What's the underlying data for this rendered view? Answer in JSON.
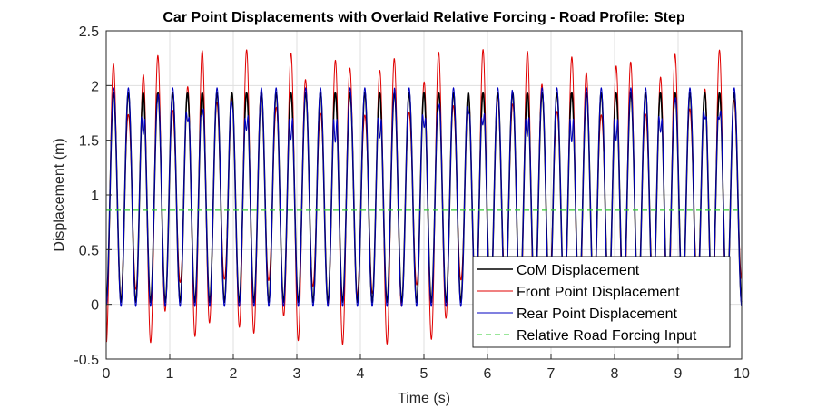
{
  "chart_data": {
    "type": "line",
    "title": "Car Point Displacements with Overlaid Relative Forcing - Road Profile: Step",
    "xlabel": "Time (s)",
    "ylabel": "Displacement (m)",
    "xlim": [
      0,
      10
    ],
    "ylim": [
      -0.5,
      2.5
    ],
    "xticks": [
      "0",
      "1",
      "2",
      "3",
      "4",
      "5",
      "6",
      "7",
      "8",
      "9",
      "10"
    ],
    "yticks": [
      "-0.5",
      "0",
      "0.5",
      "1",
      "1.5",
      "2",
      "2.5"
    ],
    "grid": true,
    "legend_position": "bottom-right",
    "colors": {
      "com": "#000000",
      "front": "#e00000",
      "rear": "#0000c0",
      "forcing": "#33cc33",
      "axes": "#262626",
      "grid": "#dfdfdf"
    },
    "series": [
      {
        "name": "CoM Displacement",
        "style": "solid",
        "description_params": {
          "mean": 0.98,
          "amplitude": 0.96,
          "frequency_hz": 4.3,
          "clip_min": 0.02,
          "clip_max": 1.93
        }
      },
      {
        "name": "Front Point Displacement",
        "style": "solid",
        "description_params": {
          "mean": 0.98,
          "amplitude": 1.05,
          "frequency_hz": 4.3,
          "beat_amplitude": 0.3,
          "beat_frequency_hz": 1.35
        }
      },
      {
        "name": "Rear Point Displacement",
        "style": "solid",
        "description_params": {
          "mean": 0.98,
          "amplitude": 1.0,
          "frequency_hz": 4.3,
          "dip_depth": 0.5,
          "beat_frequency_hz": 1.35
        }
      },
      {
        "name": "Relative Road Forcing Input",
        "style": "dashed",
        "constant_value": 0.86
      }
    ]
  }
}
